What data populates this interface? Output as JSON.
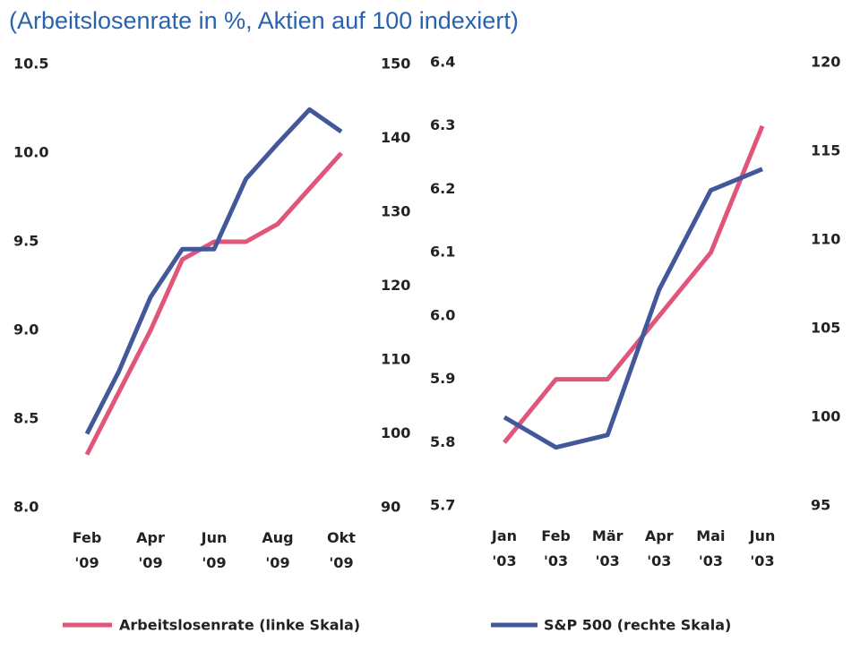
{
  "title": "(Arbeitslosenrate in %, Aktien auf 100 indexiert)",
  "chart_data": [
    {
      "type": "line",
      "categories": [
        "Feb '09",
        null,
        "Apr '09",
        null,
        "Jun '09",
        null,
        "Aug '09",
        null,
        "Okt '09"
      ],
      "ylim": [
        8,
        10.5
      ],
      "yticks": [
        {
          "value": 8,
          "label": "8.0"
        },
        8.5,
        {
          "value": 9,
          "label": "9.0"
        },
        9.5,
        {
          "value": 10,
          "label": "10.0"
        },
        10.5
      ],
      "y2lim": [
        90,
        150
      ],
      "y2ticks": [
        90,
        100,
        110,
        120,
        130,
        140,
        150
      ],
      "series": [
        {
          "name": "Arbeitslosenrate (linke Skala)",
          "color": "#e0557a",
          "values": [
            8.3,
            8.65,
            9.0,
            9.4,
            9.5,
            9.5,
            9.6,
            9.8,
            10.0
          ]
        },
        {
          "name": "S&P 500 (rechte Skala)",
          "color": "#42589b",
          "axis": "y2",
          "values": [
            100,
            108.4,
            118.5,
            125,
            125,
            134.5,
            139.3,
            143.9,
            140.9
          ]
        }
      ]
    },
    {
      "type": "line",
      "categories": [
        "Jan '03",
        "Feb '03",
        "Mär '03",
        "Apr '03",
        "Mai '03",
        "Jun '03"
      ],
      "ylim": [
        5.7,
        6.4
      ],
      "yticks": [
        5.7,
        5.8,
        5.9,
        {
          "value": 6,
          "label": "6.0"
        },
        6.1,
        6.2,
        6.3,
        6.4
      ],
      "y2lim": [
        95,
        120
      ],
      "y2ticks": [
        95,
        100,
        105,
        110,
        115,
        120
      ],
      "series": [
        {
          "color": "#e0557a",
          "values": [
            5.8,
            5.9,
            5.9,
            6.0,
            6.1,
            6.3
          ]
        },
        {
          "color": "#42589b",
          "axis": "y2",
          "values": [
            100,
            98.3,
            99.0,
            107.2,
            112.8,
            114
          ]
        }
      ]
    }
  ]
}
